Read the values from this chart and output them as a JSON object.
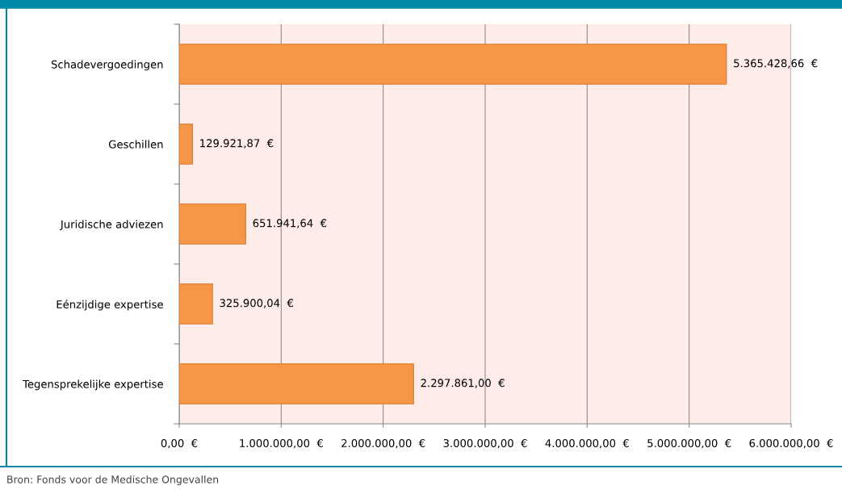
{
  "chart_data": {
    "type": "bar",
    "orientation": "horizontal",
    "categories": [
      "Schadevergoedingen",
      "Geschillen",
      "Juridische adviezen",
      "Eénzijdige expertise",
      "Tegensprekelijke expertise"
    ],
    "values": [
      5365428.66,
      129921.87,
      651941.64,
      325900.04,
      2297861.0
    ],
    "value_labels": [
      "5.365.428,66  €",
      "129.921,87  €",
      "651.941,64  €",
      "325.900,04  €",
      "2.297.861,00  €"
    ],
    "color": "#f79646",
    "xlim": [
      0,
      6000000
    ],
    "xticks": [
      {
        "value": 0,
        "label": "0,00  €"
      },
      {
        "value": 1000000,
        "label": "1.000.000,00  €"
      },
      {
        "value": 2000000,
        "label": "2.000.000,00  €"
      },
      {
        "value": 3000000,
        "label": "3.000.000,00  €"
      },
      {
        "value": 4000000,
        "label": "4.000.000,00  €"
      },
      {
        "value": 5000000,
        "label": "5.000.000,00  €"
      },
      {
        "value": 6000000,
        "label": "6.000.000,00  €"
      }
    ],
    "grid": "x",
    "legend": false,
    "annotations": [
      "Bron: Fonds voor de Medische Ongevallen"
    ]
  }
}
